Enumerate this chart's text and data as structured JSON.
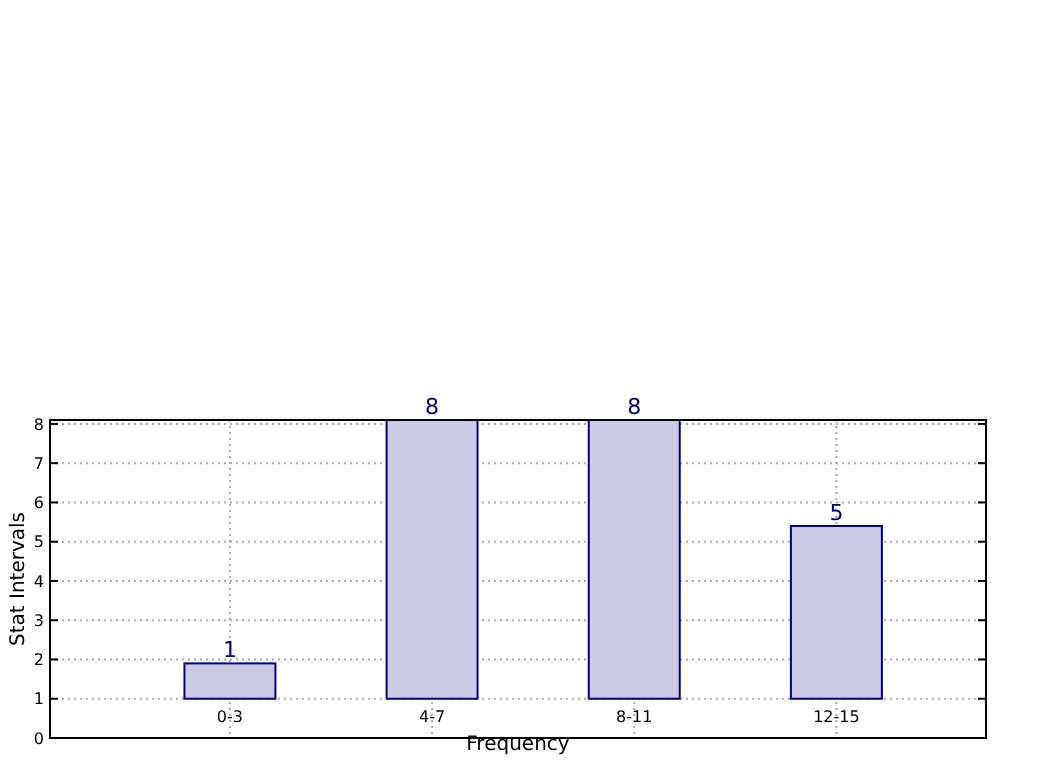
{
  "chart_data": {
    "type": "bar",
    "xlabel": "Frequency",
    "ylabel": "Stat Intervals",
    "categories": [
      "0-3",
      "4-7",
      "8-11",
      "12-15"
    ],
    "base": [
      1,
      1,
      1,
      1
    ],
    "values": [
      0.9,
      7.1,
      7.1,
      4.4
    ],
    "value_labels": [
      "1",
      "8",
      "8",
      "5"
    ],
    "color": "#cbcbe3",
    "ylim": [
      0,
      8.1
    ],
    "yticks": [
      0,
      1,
      2,
      3,
      4,
      5,
      6,
      7,
      8
    ],
    "grid": true
  }
}
